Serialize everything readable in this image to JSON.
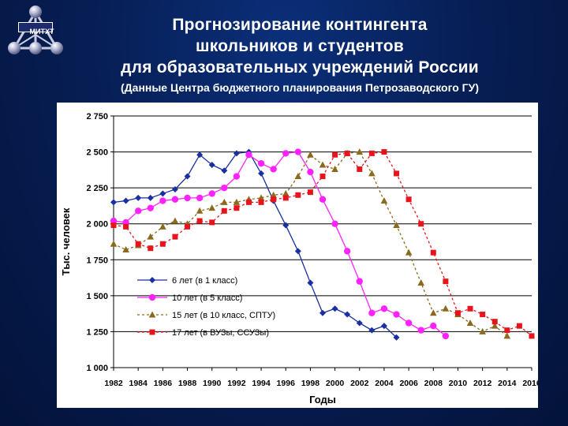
{
  "header": {
    "logo_text": "МИТХТ",
    "title_lines": [
      "Прогнозирование контингента",
      "школьников и студентов",
      "для образовательных учреждений России"
    ],
    "subtitle": "(Данные Центра бюджетного планирования Петрозаводского ГУ)"
  },
  "colors": {
    "background": "#071f56",
    "series": [
      "#1a2fa0",
      "#ff22ff",
      "#8b6a1e",
      "#e8141c"
    ]
  },
  "chart_data": {
    "type": "line",
    "title": "",
    "xlabel": "Годы",
    "ylabel": "Тыс. человек",
    "ylim": [
      1000,
      2750
    ],
    "xlim": [
      1982,
      2016
    ],
    "y_ticks": [
      "1 000",
      "1 250",
      "1 500",
      "1 750",
      "2 000",
      "2 250",
      "2 500",
      "2 750"
    ],
    "x_ticks": [
      "1982",
      "1984",
      "1986",
      "1988",
      "1990",
      "1992",
      "1994",
      "1996",
      "1998",
      "2000",
      "2002",
      "2004",
      "2006",
      "2008",
      "2010",
      "2012",
      "2014",
      "2016"
    ],
    "grid": "horizontal",
    "legend_placement": "bottom-left",
    "series": [
      {
        "name": "6 лет (в 1 класс)",
        "marker": "diamond",
        "x": [
          1982,
          1983,
          1984,
          1985,
          1986,
          1987,
          1988,
          1989,
          1990,
          1991,
          1992,
          1993,
          1994,
          1995,
          1996,
          1997,
          1998,
          1999,
          2000,
          2001,
          2002,
          2003,
          2004,
          2005
        ],
        "values": [
          2150,
          2160,
          2180,
          2180,
          2210,
          2240,
          2330,
          2480,
          2410,
          2370,
          2490,
          2500,
          2350,
          2160,
          1990,
          1810,
          1590,
          1380,
          1410,
          1370,
          1310,
          1260,
          1290,
          1210
        ]
      },
      {
        "name": "10 лет (в 5 класс)",
        "marker": "circle",
        "x": [
          1982,
          1983,
          1984,
          1985,
          1986,
          1987,
          1988,
          1989,
          1990,
          1991,
          1992,
          1993,
          1994,
          1995,
          1996,
          1997,
          1998,
          1999,
          2000,
          2001,
          2002,
          2003,
          2004,
          2005,
          2006,
          2007,
          2008,
          2009
        ],
        "values": [
          2020,
          2010,
          2090,
          2110,
          2160,
          2170,
          2180,
          2180,
          2210,
          2250,
          2330,
          2480,
          2420,
          2380,
          2490,
          2500,
          2360,
          2170,
          2000,
          1810,
          1600,
          1380,
          1410,
          1370,
          1310,
          1260,
          1290,
          1220
        ]
      },
      {
        "name": "15 лет (в 10 класс, СПТУ)",
        "marker": "triangle",
        "x": [
          1982,
          1983,
          1984,
          1985,
          1986,
          1987,
          1988,
          1989,
          1990,
          1991,
          1992,
          1993,
          1994,
          1995,
          1996,
          1997,
          1998,
          1999,
          2000,
          2001,
          2002,
          2003,
          2004,
          2005,
          2006,
          2007,
          2008,
          2009,
          2010,
          2011,
          2012,
          2013,
          2014
        ],
        "values": [
          1860,
          1820,
          1850,
          1910,
          1980,
          2020,
          2000,
          2090,
          2110,
          2150,
          2150,
          2170,
          2180,
          2200,
          2210,
          2330,
          2480,
          2410,
          2380,
          2490,
          2500,
          2350,
          2160,
          1990,
          1800,
          1590,
          1380,
          1410,
          1370,
          1310,
          1250,
          1290,
          1220
        ]
      },
      {
        "name": "17 лет (в ВУЗы, ССУЗы)",
        "marker": "square",
        "x": [
          1982,
          1983,
          1984,
          1985,
          1986,
          1987,
          1988,
          1989,
          1990,
          1991,
          1992,
          1993,
          1994,
          1995,
          1996,
          1997,
          1998,
          1999,
          2000,
          2001,
          2002,
          2003,
          2004,
          2005,
          2006,
          2007,
          2008,
          2009,
          2010,
          2011,
          2012,
          2013,
          2014,
          2015,
          2016
        ],
        "values": [
          1990,
          1980,
          1860,
          1830,
          1860,
          1910,
          1980,
          2020,
          2010,
          2090,
          2110,
          2150,
          2150,
          2170,
          2180,
          2200,
          2220,
          2330,
          2480,
          2490,
          2380,
          2490,
          2500,
          2350,
          2170,
          2000,
          1800,
          1600,
          1380,
          1410,
          1370,
          1320,
          1260,
          1290,
          1220
        ]
      }
    ]
  }
}
